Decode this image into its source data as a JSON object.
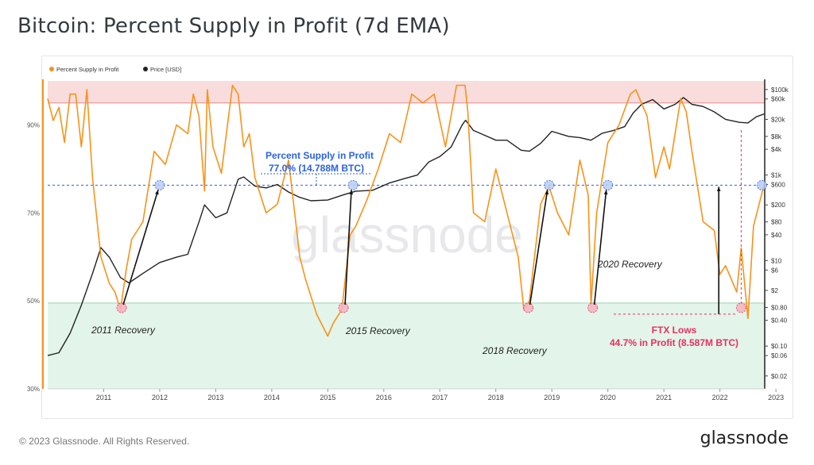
{
  "title": "Bitcoin: Percent Supply in Profit (7d EMA)",
  "footer": "© 2023 Glassnode. All Rights Reserved.",
  "brand": "glassnode",
  "watermark": "glassnode",
  "colors": {
    "supply": "#f7931a",
    "price": "#222222",
    "upper_zone": "#f9dcdc",
    "lower_zone": "#e3f4ea",
    "blue": "#2a62e4",
    "pink": "#e8305f"
  },
  "chart_data": {
    "type": "line",
    "legend": [
      {
        "name": "Percent Supply in Profit",
        "color": "#f7931a"
      },
      {
        "name": "Price [USD]",
        "color": "#222222"
      }
    ],
    "legend_position": "top-left",
    "x_ticks": [
      "2011",
      "2012",
      "2013",
      "2014",
      "2015",
      "2016",
      "2017",
      "2018",
      "2019",
      "2020",
      "2021",
      "2022",
      "2023"
    ],
    "x_range": [
      2010.5,
      2023.3
    ],
    "y_left_ticks": [
      "90%",
      "70%",
      "50%",
      "30%"
    ],
    "y_left_range": [
      30,
      100
    ],
    "y_right_ticks": [
      "$100k",
      "$60k",
      "$20k",
      "$8k",
      "$4k",
      "$1k",
      "$600",
      "$200",
      "$80",
      "$40",
      "$10",
      "$6",
      "$2",
      "$0.80",
      "$0.40",
      "$0.10",
      "$0.06",
      "$0.02"
    ],
    "y_right_range_log10": [
      -2,
      5.2
    ],
    "grid": false,
    "zones": {
      "upper_threshold_pct": 95,
      "lower_threshold_pct": 49.5
    },
    "reference_line_pct": 76.3,
    "series": [
      {
        "name": "Percent Supply in Profit",
        "x": [
          2010.5,
          2010.6,
          2010.7,
          2010.8,
          2010.9,
          2011.0,
          2011.1,
          2011.2,
          2011.3,
          2011.45,
          2011.6,
          2011.7,
          2011.8,
          2011.9,
          2012.0,
          2012.2,
          2012.4,
          2012.6,
          2012.8,
          2013.0,
          2013.1,
          2013.2,
          2013.3,
          2013.35,
          2013.45,
          2013.6,
          2013.8,
          2013.9,
          2014.0,
          2014.1,
          2014.2,
          2014.4,
          2014.6,
          2014.8,
          2015.0,
          2015.1,
          2015.3,
          2015.5,
          2015.6,
          2015.75,
          2015.9,
          2016.0,
          2016.2,
          2016.4,
          2016.6,
          2016.8,
          2017.0,
          2017.2,
          2017.4,
          2017.6,
          2017.8,
          2017.95,
          2018.0,
          2018.1,
          2018.3,
          2018.5,
          2018.7,
          2018.9,
          2019.0,
          2019.1,
          2019.3,
          2019.45,
          2019.6,
          2019.8,
          2020.0,
          2020.15,
          2020.2,
          2020.3,
          2020.5,
          2020.7,
          2020.9,
          2021.0,
          2021.2,
          2021.35,
          2021.5,
          2021.6,
          2021.8,
          2021.9,
          2022.0,
          2022.2,
          2022.4,
          2022.5,
          2022.6,
          2022.8,
          2022.88,
          2023.0,
          2023.1,
          2023.2,
          2023.3
        ],
        "values": [
          96,
          91,
          94,
          86,
          97,
          97,
          85,
          98,
          78,
          60,
          54,
          52,
          48,
          57,
          64,
          68,
          84,
          81,
          90,
          88,
          97,
          92,
          75,
          98,
          85,
          79,
          99,
          97,
          85,
          88,
          78,
          70,
          72,
          82,
          60,
          55,
          47,
          42,
          45,
          48,
          65,
          67,
          73,
          80,
          88,
          86,
          97,
          95,
          97,
          85,
          99,
          99,
          93,
          70,
          68,
          80,
          70,
          60,
          48,
          50,
          72,
          76,
          70,
          65,
          82,
          74,
          49,
          70,
          86,
          90,
          97,
          98,
          92,
          78,
          85,
          80,
          96,
          93,
          84,
          68,
          66,
          56,
          58,
          52,
          62,
          46,
          67,
          72,
          77
        ]
      },
      {
        "name": "Price [USD]",
        "x": [
          2010.5,
          2010.7,
          2010.9,
          2011.1,
          2011.3,
          2011.45,
          2011.6,
          2011.8,
          2011.95,
          2012.2,
          2012.5,
          2012.8,
          2013.0,
          2013.2,
          2013.3,
          2013.5,
          2013.7,
          2013.9,
          2014.0,
          2014.2,
          2014.4,
          2014.6,
          2014.8,
          2015.0,
          2015.2,
          2015.5,
          2015.8,
          2016.0,
          2016.3,
          2016.6,
          2016.9,
          2017.1,
          2017.3,
          2017.5,
          2017.7,
          2017.9,
          2017.96,
          2018.1,
          2018.3,
          2018.5,
          2018.7,
          2018.95,
          2019.1,
          2019.3,
          2019.5,
          2019.8,
          2020.0,
          2020.2,
          2020.4,
          2020.6,
          2020.8,
          2020.95,
          2021.1,
          2021.3,
          2021.5,
          2021.7,
          2021.85,
          2022.0,
          2022.2,
          2022.4,
          2022.6,
          2022.85,
          2023.0,
          2023.15,
          2023.3
        ],
        "values": [
          0.06,
          0.07,
          0.2,
          0.9,
          5,
          20,
          12,
          4,
          3,
          5,
          9,
          12,
          14,
          80,
          200,
          100,
          130,
          800,
          900,
          550,
          500,
          600,
          400,
          300,
          250,
          260,
          350,
          420,
          440,
          650,
          850,
          1000,
          2000,
          2700,
          4500,
          15000,
          19000,
          11000,
          8500,
          6500,
          6500,
          3800,
          3600,
          5500,
          10500,
          8000,
          7500,
          6500,
          9500,
          11000,
          13500,
          28000,
          45000,
          58000,
          35000,
          45000,
          65000,
          45000,
          40000,
          30000,
          20000,
          17000,
          16500,
          23000,
          27000
        ]
      }
    ],
    "annotations": [
      {
        "text": "2011 Recovery"
      },
      {
        "text": "2015 Recovery"
      },
      {
        "text": "2018 Recovery"
      },
      {
        "text": "2020 Recovery"
      },
      {
        "text": "FTX Lows"
      },
      {
        "text": "44.7% in Profit (8.587M BTC)"
      },
      {
        "text": "Percent Supply in Profit"
      },
      {
        "text": "77.0% (14.788M BTC)"
      }
    ]
  }
}
